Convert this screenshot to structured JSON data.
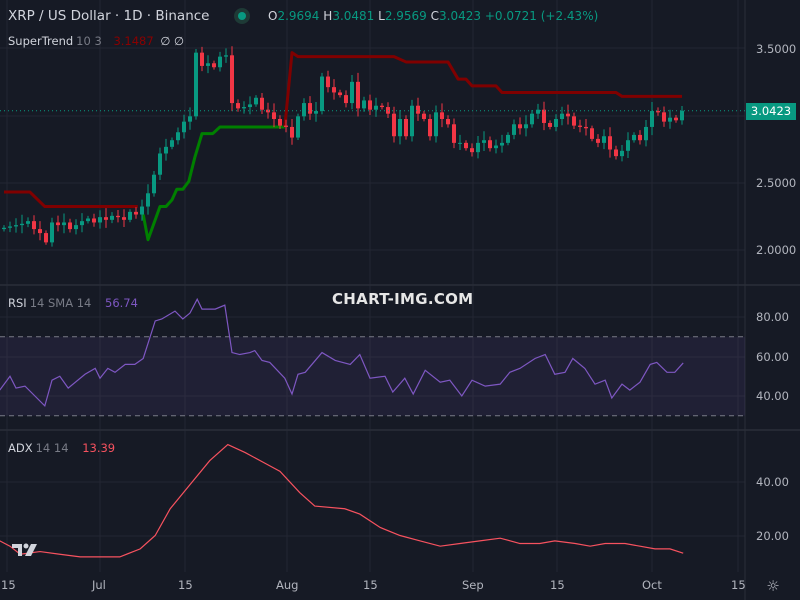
{
  "header": {
    "title": "XRP / US Dollar · 1D · Binance",
    "open_label": "O",
    "open": "2.9694",
    "high_label": "H",
    "high": "3.0481",
    "low_label": "L",
    "low": "2.9569",
    "close_label": "C",
    "close": "3.0423",
    "change": "+0.0721 (+2.43%)"
  },
  "indicators": {
    "supertrend": {
      "name": "SuperTrend",
      "params": "10 3",
      "value": "3.1487",
      "extra1": "∅",
      "extra2": "∅"
    },
    "rsi": {
      "name": "RSI",
      "params": "14 SMA 14",
      "value": "56.74"
    },
    "adx": {
      "name": "ADX",
      "params": "14 14",
      "value": "13.39"
    }
  },
  "watermark": "CHART-IMG.COM",
  "price_axis": {
    "ticks": [
      "3.5000",
      "2.5000",
      "2.0000"
    ],
    "last_price": "3.0423"
  },
  "rsi_axis": {
    "ticks": [
      "80.00",
      "60.00",
      "40.00"
    ]
  },
  "adx_axis": {
    "ticks": [
      "40.00",
      "20.00"
    ]
  },
  "time_axis": {
    "ticks": [
      "15",
      "Jul",
      "15",
      "Aug",
      "15",
      "Sep",
      "15",
      "Oct",
      "15"
    ]
  },
  "colors": {
    "bg": "#161a25",
    "up": "#089981",
    "down": "#f23645",
    "st_down": "#800000",
    "st_up": "#008000",
    "rsi": "#7e57c2",
    "adx": "#f7525f"
  },
  "icons": {
    "logo": "tradingview-logo-icon",
    "settings": "settings-icon"
  },
  "chart_data": {
    "type": "candlestick",
    "closes": [
      2.16,
      2.17,
      2.18,
      2.19,
      2.21,
      2.15,
      2.12,
      2.05,
      2.2,
      2.18,
      2.2,
      2.15,
      2.18,
      2.21,
      2.23,
      2.2,
      2.24,
      2.22,
      2.25,
      2.24,
      2.22,
      2.28,
      2.26,
      2.32,
      2.42,
      2.56,
      2.72,
      2.77,
      2.82,
      2.88,
      2.96,
      3.0,
      3.48,
      3.38,
      3.4,
      3.37,
      3.45,
      3.46,
      3.1,
      3.06,
      3.07,
      3.09,
      3.14,
      3.05,
      3.03,
      2.98,
      2.93,
      2.92,
      2.84,
      3.0,
      3.1,
      3.02,
      3.04,
      3.3,
      3.22,
      3.18,
      3.16,
      3.1,
      3.26,
      3.06,
      3.12,
      3.05,
      3.08,
      3.07,
      3.02,
      2.85,
      2.98,
      2.85,
      3.08,
      3.02,
      2.98,
      2.85,
      3.03,
      2.98,
      2.94,
      2.8,
      2.8,
      2.76,
      2.73,
      2.8,
      2.82,
      2.76,
      2.78,
      2.8,
      2.86,
      2.94,
      2.91,
      2.94,
      3.02,
      3.05,
      2.95,
      2.92,
      2.98,
      3.02,
      3.0,
      2.93,
      2.92,
      2.91,
      2.83,
      2.8,
      2.85,
      2.75,
      2.7,
      2.74,
      2.82,
      2.86,
      2.82,
      2.92,
      3.04,
      3.03,
      2.96,
      2.99,
      2.97,
      3.0423
    ],
    "first_open": 2.15,
    "supertrend": [
      {
        "trend": "down",
        "points": [
          [
            0,
            2.43
          ],
          [
            4.3,
            2.43
          ],
          [
            6.8,
            2.32
          ],
          [
            22.3,
            2.32
          ]
        ]
      },
      {
        "trend": "up",
        "points": [
          [
            23.2,
            2.26
          ],
          [
            24,
            2.07
          ],
          [
            24.8,
            2.17
          ],
          [
            26,
            2.32
          ],
          [
            27,
            2.32
          ],
          [
            28,
            2.37
          ],
          [
            28.8,
            2.45
          ],
          [
            29.8,
            2.45
          ],
          [
            30.8,
            2.51
          ],
          [
            31.8,
            2.69
          ],
          [
            33,
            2.87
          ],
          [
            34.8,
            2.87
          ],
          [
            36,
            2.92
          ],
          [
            46.8,
            2.92
          ]
        ]
      },
      {
        "trend": "down",
        "points": [
          [
            46.8,
            2.92
          ],
          [
            48,
            3.48
          ],
          [
            49,
            3.45
          ],
          [
            65,
            3.45
          ],
          [
            67,
            3.41
          ],
          [
            74,
            3.41
          ],
          [
            75.7,
            3.28
          ],
          [
            77,
            3.28
          ],
          [
            78,
            3.23
          ],
          [
            82,
            3.23
          ],
          [
            83,
            3.18
          ],
          [
            102,
            3.18
          ],
          [
            103,
            3.15
          ],
          [
            113,
            3.15
          ]
        ]
      }
    ],
    "rsi": [
      [
        -0.7,
        43
      ],
      [
        1,
        50
      ],
      [
        2,
        44
      ],
      [
        3.5,
        45
      ],
      [
        6.8,
        35
      ],
      [
        8,
        48
      ],
      [
        9.3,
        50
      ],
      [
        10.7,
        44
      ],
      [
        13.5,
        51
      ],
      [
        15.2,
        54
      ],
      [
        16,
        49
      ],
      [
        17.3,
        54
      ],
      [
        18.5,
        52
      ],
      [
        20.2,
        56
      ],
      [
        21.8,
        56
      ],
      [
        23.2,
        59
      ],
      [
        25.2,
        78
      ],
      [
        26.3,
        79
      ],
      [
        28.5,
        83
      ],
      [
        29.8,
        79
      ],
      [
        31,
        82
      ],
      [
        32.2,
        89
      ],
      [
        33,
        84
      ],
      [
        35.2,
        84
      ],
      [
        36.8,
        86
      ],
      [
        38,
        62
      ],
      [
        39.3,
        61
      ],
      [
        41,
        62
      ],
      [
        41.8,
        63
      ],
      [
        43,
        58
      ],
      [
        44.3,
        57
      ],
      [
        46.8,
        49
      ],
      [
        48,
        41
      ],
      [
        49,
        51
      ],
      [
        50.2,
        52
      ],
      [
        53,
        62
      ],
      [
        55.2,
        58
      ],
      [
        57.7,
        56
      ],
      [
        59.3,
        61
      ],
      [
        61,
        49
      ],
      [
        63.5,
        50
      ],
      [
        64.8,
        42
      ],
      [
        66.8,
        49
      ],
      [
        68.2,
        41
      ],
      [
        70.2,
        53
      ],
      [
        72.7,
        47
      ],
      [
        74.3,
        48
      ],
      [
        76.3,
        40
      ],
      [
        78,
        48
      ],
      [
        80.2,
        45
      ],
      [
        82.7,
        46
      ],
      [
        84.3,
        52
      ],
      [
        86,
        54
      ],
      [
        88.5,
        59
      ],
      [
        90.2,
        61
      ],
      [
        91.8,
        51
      ],
      [
        93.5,
        52
      ],
      [
        94.8,
        59
      ],
      [
        96.8,
        54
      ],
      [
        98.5,
        46
      ],
      [
        100.2,
        48
      ],
      [
        101.3,
        39
      ],
      [
        103,
        46
      ],
      [
        104.3,
        43
      ],
      [
        106,
        47
      ],
      [
        107.7,
        56
      ],
      [
        108.8,
        57
      ],
      [
        110.5,
        52
      ],
      [
        111.8,
        52
      ],
      [
        113.2,
        56.74
      ]
    ],
    "adx": [
      [
        -0.7,
        18
      ],
      [
        1,
        16
      ],
      [
        2.7,
        13
      ],
      [
        6,
        14
      ],
      [
        9.3,
        13
      ],
      [
        12.7,
        12
      ],
      [
        16,
        12
      ],
      [
        19.3,
        12
      ],
      [
        22.7,
        15
      ],
      [
        25.2,
        20
      ],
      [
        27.7,
        30
      ],
      [
        31,
        39
      ],
      [
        34.3,
        48
      ],
      [
        37.3,
        54
      ],
      [
        40.2,
        51
      ],
      [
        43.5,
        47
      ],
      [
        46,
        44
      ],
      [
        49.3,
        36
      ],
      [
        51.8,
        31
      ],
      [
        56.8,
        30
      ],
      [
        59.3,
        28
      ],
      [
        62.7,
        23
      ],
      [
        66,
        20
      ],
      [
        69.3,
        18
      ],
      [
        72.7,
        16
      ],
      [
        76,
        17
      ],
      [
        79.3,
        18
      ],
      [
        82.7,
        19
      ],
      [
        86,
        17
      ],
      [
        89.3,
        17
      ],
      [
        91.8,
        18
      ],
      [
        95.2,
        17
      ],
      [
        97.7,
        16
      ],
      [
        100.2,
        17
      ],
      [
        103.5,
        17
      ],
      [
        106,
        16
      ],
      [
        108.5,
        15
      ],
      [
        111,
        15
      ],
      [
        113.2,
        13.39
      ]
    ],
    "price_range": [
      1.75,
      3.88
    ],
    "rsi_range": [
      20,
      100
    ],
    "rsi_bands": [
      70,
      30
    ],
    "adx_range": [
      5,
      60
    ]
  }
}
